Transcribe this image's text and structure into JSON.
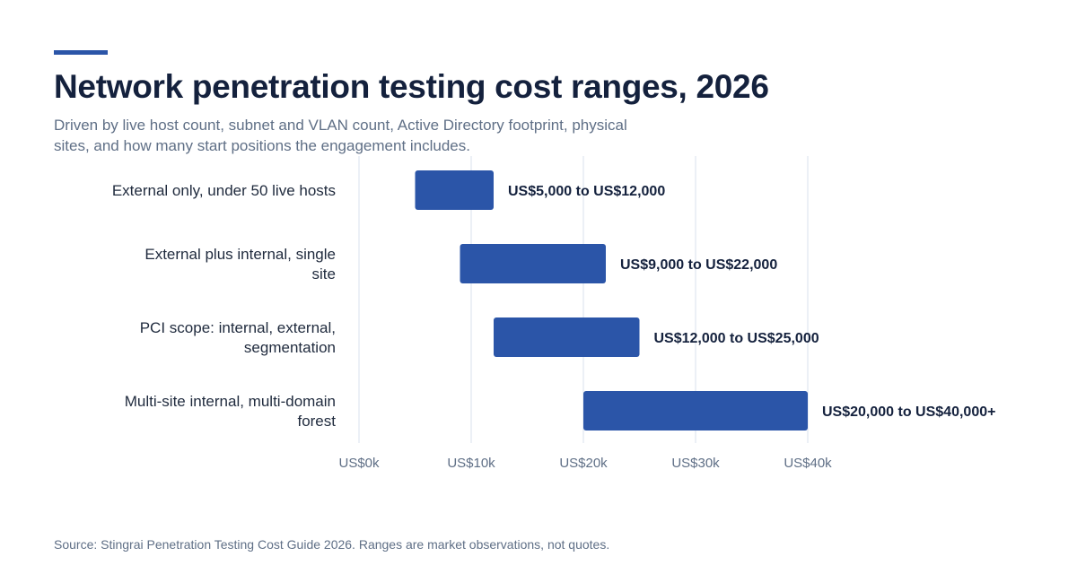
{
  "title": "Network penetration testing cost ranges, 2026",
  "subtitle": "Driven by live host count, subnet and VLAN count, Active Directory footprint, physical sites, and how many start positions the engagement includes.",
  "source": "Source: Stingrai Penetration Testing Cost Guide 2026. Ranges are market observations, not quotes.",
  "colors": {
    "accent": "#2b55a8",
    "bar": "#2b55a8",
    "title": "#14213d",
    "muted": "#5f6f86",
    "grid": "#e6ebf3"
  },
  "chart_data": {
    "type": "bar",
    "orientation": "horizontal",
    "subtype": "floating-range",
    "categories": [
      [
        "External only, under 50 live hosts"
      ],
      [
        "External plus internal, single",
        "site"
      ],
      [
        "PCI scope: internal, external,",
        "segmentation"
      ],
      [
        "Multi-site internal, multi-domain",
        "forest"
      ]
    ],
    "ranges": [
      [
        5000,
        12000
      ],
      [
        9000,
        22000
      ],
      [
        12000,
        25000
      ],
      [
        20000,
        40000
      ]
    ],
    "data_labels": [
      "US$5,000 to US$12,000",
      "US$9,000 to US$22,000",
      "US$12,000 to US$25,000",
      "US$20,000 to US$40,000+"
    ],
    "x_ticks": [
      0,
      10000,
      20000,
      30000,
      40000
    ],
    "x_tick_labels": [
      "US$0k",
      "US$10k",
      "US$20k",
      "US$30k",
      "US$40k"
    ],
    "xlim": [
      0,
      40000
    ],
    "grid": true,
    "legend": "none"
  }
}
